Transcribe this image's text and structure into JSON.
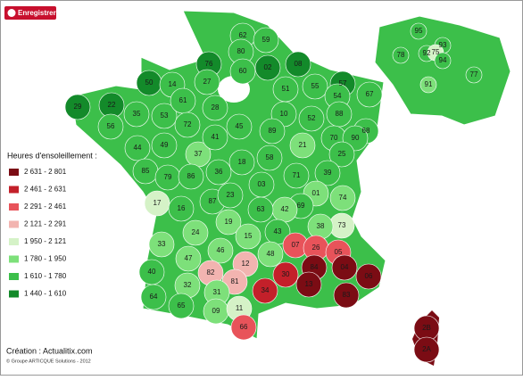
{
  "button": {
    "label": "Enregistrer"
  },
  "legend": {
    "title": "Heures d'ensoleillement :",
    "items": [
      {
        "label": "2 631 - 2 801",
        "color": "#7b0c14"
      },
      {
        "label": "2 461 - 2 631",
        "color": "#c3202a"
      },
      {
        "label": "2 291 - 2 461",
        "color": "#e8535a"
      },
      {
        "label": "2 121 - 2 291",
        "color": "#f2b4b0"
      },
      {
        "label": "1 950 - 2 121",
        "color": "#d5f2c7"
      },
      {
        "label": "1 780 - 1 950",
        "color": "#7de07a"
      },
      {
        "label": "1 610 - 1 780",
        "color": "#3cbf4a"
      },
      {
        "label": "1 440 - 1 610",
        "color": "#138a2a"
      }
    ]
  },
  "departments": [
    {
      "label": "62",
      "color": "#3cbf4a"
    },
    {
      "label": "59",
      "color": "#3cbf4a"
    },
    {
      "label": "80",
      "color": "#3cbf4a"
    },
    {
      "label": "76",
      "color": "#138a2a"
    },
    {
      "label": "60",
      "color": "#3cbf4a"
    },
    {
      "label": "02",
      "color": "#138a2a"
    },
    {
      "label": "08",
      "color": "#138a2a"
    },
    {
      "label": "50",
      "color": "#138a2a"
    },
    {
      "label": "14",
      "color": "#3cbf4a"
    },
    {
      "label": "27",
      "color": "#3cbf4a"
    },
    {
      "label": "29",
      "color": "#138a2a"
    },
    {
      "label": "22",
      "color": "#138a2a"
    },
    {
      "label": "35",
      "color": "#3cbf4a"
    },
    {
      "label": "53",
      "color": "#3cbf4a"
    },
    {
      "label": "61",
      "color": "#3cbf4a"
    },
    {
      "label": "72",
      "color": "#3cbf4a"
    },
    {
      "label": "28",
      "color": "#3cbf4a"
    },
    {
      "label": "51",
      "color": "#3cbf4a"
    },
    {
      "label": "55",
      "color": "#3cbf4a"
    },
    {
      "label": "57",
      "color": "#138a2a"
    },
    {
      "label": "67",
      "color": "#3cbf4a"
    },
    {
      "label": "54",
      "color": "#3cbf4a"
    },
    {
      "label": "10",
      "color": "#3cbf4a"
    },
    {
      "label": "52",
      "color": "#3cbf4a"
    },
    {
      "label": "88",
      "color": "#3cbf4a"
    },
    {
      "label": "68",
      "color": "#3cbf4a"
    },
    {
      "label": "56",
      "color": "#3cbf4a"
    },
    {
      "label": "44",
      "color": "#3cbf4a"
    },
    {
      "label": "49",
      "color": "#3cbf4a"
    },
    {
      "label": "37",
      "color": "#7de07a"
    },
    {
      "label": "41",
      "color": "#3cbf4a"
    },
    {
      "label": "45",
      "color": "#3cbf4a"
    },
    {
      "label": "89",
      "color": "#3cbf4a"
    },
    {
      "label": "21",
      "color": "#7de07a"
    },
    {
      "label": "70",
      "color": "#3cbf4a"
    },
    {
      "label": "90",
      "color": "#3cbf4a"
    },
    {
      "label": "25",
      "color": "#3cbf4a"
    },
    {
      "label": "85",
      "color": "#3cbf4a"
    },
    {
      "label": "79",
      "color": "#3cbf4a"
    },
    {
      "label": "86",
      "color": "#3cbf4a"
    },
    {
      "label": "36",
      "color": "#3cbf4a"
    },
    {
      "label": "18",
      "color": "#3cbf4a"
    },
    {
      "label": "58",
      "color": "#3cbf4a"
    },
    {
      "label": "71",
      "color": "#3cbf4a"
    },
    {
      "label": "39",
      "color": "#3cbf4a"
    },
    {
      "label": "17",
      "color": "#d5f2c7"
    },
    {
      "label": "16",
      "color": "#3cbf4a"
    },
    {
      "label": "87",
      "color": "#3cbf4a"
    },
    {
      "label": "23",
      "color": "#3cbf4a"
    },
    {
      "label": "03",
      "color": "#3cbf4a"
    },
    {
      "label": "01",
      "color": "#7de07a"
    },
    {
      "label": "74",
      "color": "#7de07a"
    },
    {
      "label": "69",
      "color": "#3cbf4a"
    },
    {
      "label": "42",
      "color": "#7de07a"
    },
    {
      "label": "73",
      "color": "#d5f2c7"
    },
    {
      "label": "38",
      "color": "#7de07a"
    },
    {
      "label": "63",
      "color": "#3cbf4a"
    },
    {
      "label": "19",
      "color": "#7de07a"
    },
    {
      "label": "24",
      "color": "#7de07a"
    },
    {
      "label": "33",
      "color": "#7de07a"
    },
    {
      "label": "15",
      "color": "#7de07a"
    },
    {
      "label": "43",
      "color": "#3cbf4a"
    },
    {
      "label": "46",
      "color": "#7de07a"
    },
    {
      "label": "07",
      "color": "#e8535a"
    },
    {
      "label": "26",
      "color": "#e8535a"
    },
    {
      "label": "05",
      "color": "#e8535a"
    },
    {
      "label": "40",
      "color": "#3cbf4a"
    },
    {
      "label": "47",
      "color": "#7de07a"
    },
    {
      "label": "12",
      "color": "#f2b4b0"
    },
    {
      "label": "48",
      "color": "#7de07a"
    },
    {
      "label": "04",
      "color": "#7b0c14"
    },
    {
      "label": "06",
      "color": "#7b0c14"
    },
    {
      "label": "84",
      "color": "#7b0c14"
    },
    {
      "label": "82",
      "color": "#f2b4b0"
    },
    {
      "label": "81",
      "color": "#f2b4b0"
    },
    {
      "label": "30",
      "color": "#c3202a"
    },
    {
      "label": "13",
      "color": "#7b0c14"
    },
    {
      "label": "83",
      "color": "#7b0c14"
    },
    {
      "label": "34",
      "color": "#c3202a"
    },
    {
      "label": "64",
      "color": "#3cbf4a"
    },
    {
      "label": "32",
      "color": "#7de07a"
    },
    {
      "label": "31",
      "color": "#7de07a"
    },
    {
      "label": "65",
      "color": "#3cbf4a"
    },
    {
      "label": "09",
      "color": "#7de07a"
    },
    {
      "label": "11",
      "color": "#d5f2c7"
    },
    {
      "label": "66",
      "color": "#e8535a"
    },
    {
      "label": "2B",
      "color": "#7b0c14"
    },
    {
      "label": "2A",
      "color": "#7b0c14"
    },
    {
      "label": "95",
      "color": "#3cbf4a"
    },
    {
      "label": "93",
      "color": "#3cbf4a"
    },
    {
      "label": "78",
      "color": "#3cbf4a"
    },
    {
      "label": "92",
      "color": "#3cbf4a"
    },
    {
      "label": "75",
      "color": "#d5f2c7"
    },
    {
      "label": "94",
      "color": "#3cbf4a"
    },
    {
      "label": "77",
      "color": "#3cbf4a"
    },
    {
      "label": "91",
      "color": "#7de07a"
    }
  ],
  "footer": {
    "credit": "Création : Actualitix.com",
    "copyright": "© Groupe ARTICQUE Solutions - 2012"
  }
}
